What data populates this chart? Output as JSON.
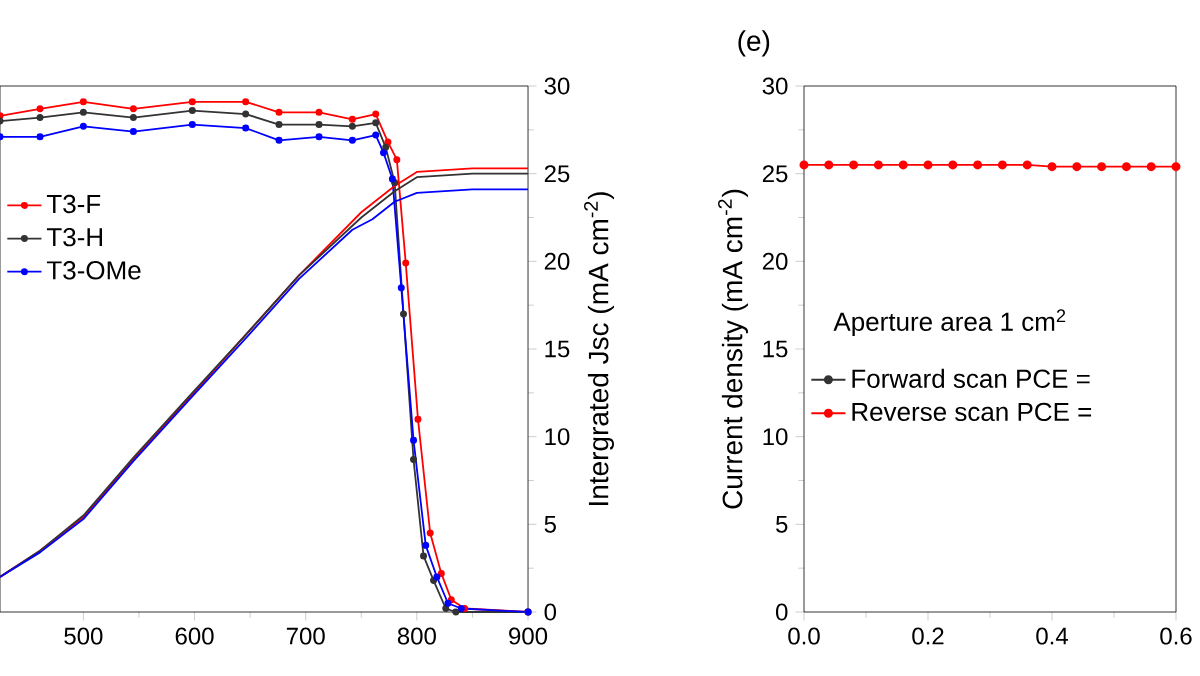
{
  "chart_data": [
    {
      "type": "line",
      "ylabel": "Intergrated Jsc (mA cm$^{-2}$)",
      "xlim": [
        425,
        900
      ],
      "xticks": [
        500,
        600,
        700,
        800,
        900
      ],
      "ylim": [
        0,
        30
      ],
      "yticks": [
        0,
        5,
        10,
        15,
        20,
        25,
        30
      ],
      "legend": "left",
      "series": [
        {
          "name": "T3-F",
          "color": "#ff0000",
          "marker": "circle",
          "x": [
            425,
            461,
            500,
            545,
            598,
            646,
            676,
            712,
            742,
            763,
            774,
            782,
            790,
            801,
            812,
            822,
            831,
            843,
            900
          ],
          "values": [
            28.3,
            28.7,
            29.1,
            28.7,
            29.1,
            29.1,
            28.5,
            28.5,
            28.1,
            28.4,
            26.8,
            25.8,
            19.9,
            11,
            4.5,
            2.2,
            0.7,
            0.2,
            0
          ]
        },
        {
          "name": "T3-H",
          "color": "#333333",
          "marker": "circle",
          "x": [
            425,
            461,
            500,
            545,
            598,
            646,
            676,
            712,
            742,
            763,
            772,
            780,
            788,
            797,
            806,
            815,
            826,
            835,
            900
          ],
          "values": [
            28.0,
            28.2,
            28.5,
            28.2,
            28.6,
            28.4,
            27.8,
            27.8,
            27.7,
            27.9,
            26.5,
            24.5,
            17,
            8.7,
            3.2,
            1.8,
            0.2,
            0,
            0
          ]
        },
        {
          "name": "T3-OMe",
          "color": "#0000ff",
          "marker": "circle",
          "x": [
            425,
            461,
            500,
            545,
            598,
            646,
            676,
            712,
            742,
            763,
            770,
            778,
            786,
            797,
            808,
            818,
            828,
            840,
            900
          ],
          "values": [
            27.1,
            27.1,
            27.7,
            27.4,
            27.8,
            27.6,
            26.9,
            27.1,
            26.9,
            27.2,
            26.2,
            24.7,
            18.5,
            9.8,
            3.8,
            2,
            0.5,
            0.2,
            0
          ]
        },
        {
          "color": "#ff0000",
          "marker": "none",
          "x": [
            425,
            461,
            500,
            545,
            598,
            646,
            694,
            750,
            780,
            800,
            850,
            900
          ],
          "values": [
            2.0,
            3.5,
            5.4,
            8.7,
            12.4,
            15.8,
            19.2,
            22.8,
            24.3,
            25.1,
            25.3,
            25.3
          ]
        },
        {
          "color": "#333333",
          "marker": "none",
          "x": [
            425,
            461,
            500,
            545,
            598,
            646,
            694,
            750,
            780,
            800,
            850,
            900
          ],
          "values": [
            2.0,
            3.5,
            5.5,
            8.8,
            12.5,
            15.8,
            19.2,
            22.5,
            24.0,
            24.8,
            25.0,
            25.0
          ]
        },
        {
          "color": "#0000ff",
          "marker": "none",
          "x": [
            425,
            461,
            500,
            545,
            598,
            646,
            694,
            742,
            760,
            780,
            800,
            850,
            900
          ],
          "values": [
            2.0,
            3.4,
            5.3,
            8.6,
            12.3,
            15.6,
            19.0,
            21.8,
            22.4,
            23.4,
            23.9,
            24.1,
            24.1
          ]
        }
      ]
    },
    {
      "type": "line",
      "title": "(e)",
      "ylabel": "Current density (mA cm$^{-2}$)",
      "xlim": [
        0,
        0.6
      ],
      "xticks": [
        {
          "value": 0,
          "label": "0.0"
        },
        {
          "value": 0.2,
          "label": "0.2"
        },
        {
          "value": 0.4,
          "label": "0.4"
        },
        {
          "value": 0.6,
          "label": "0.6"
        }
      ],
      "ylim": [
        0,
        30
      ],
      "yticks": [
        0,
        5,
        10,
        15,
        20,
        25,
        30
      ],
      "legend": "left",
      "marker": "circle",
      "annotations": [
        "Aperture area 1 cm$^{2}$"
      ],
      "x": [
        0,
        0.04,
        0.08,
        0.12,
        0.16,
        0.2,
        0.24,
        0.28,
        0.32,
        0.36,
        0.4,
        0.44,
        0.48,
        0.52,
        0.56,
        0.6
      ],
      "series": [
        {
          "name": "Forward scan PCE =",
          "color": "#333333",
          "values": [
            null,
            null,
            null,
            null,
            null,
            null,
            null,
            null,
            null,
            null,
            null,
            null,
            null,
            null,
            null,
            null
          ]
        },
        {
          "name": "Reverse scan PCE =",
          "color": "#ff0000",
          "values": [
            25.5,
            25.5,
            25.5,
            25.5,
            25.5,
            25.5,
            25.5,
            25.5,
            25.5,
            25.5,
            25.4,
            25.4,
            25.4,
            25.4,
            25.4,
            25.4
          ]
        }
      ]
    }
  ]
}
